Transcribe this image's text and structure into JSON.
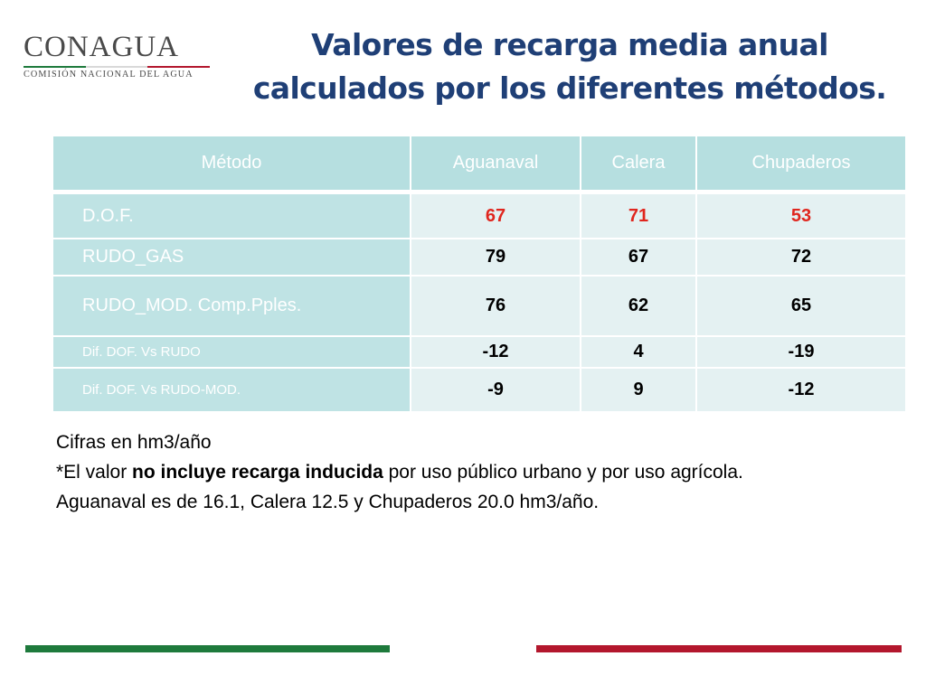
{
  "logo": {
    "wordmark": "CONAGUA",
    "subtitle": "COMISIÓN NACIONAL DEL AGUA"
  },
  "title": {
    "line1": "Valores de recarga media anual",
    "line2": "calculados por los diferentes métodos."
  },
  "table": {
    "headers": [
      "Método",
      "Aguanaval",
      "Calera",
      "Chupaderos"
    ],
    "rows": [
      {
        "label": "D.O.F.",
        "values": [
          "67",
          "71",
          "53"
        ]
      },
      {
        "label": "RUDO_GAS",
        "values": [
          "79",
          "67",
          "72"
        ]
      },
      {
        "label": "RUDO_MOD. Comp.Pples.",
        "values": [
          "76",
          "62",
          "65"
        ]
      },
      {
        "label": "Dif. DOF. Vs RUDO",
        "values": [
          "-12",
          "4",
          "-19"
        ]
      },
      {
        "label": "Dif. DOF. Vs RUDO-MOD.",
        "values": [
          "-9",
          "9",
          "-12"
        ]
      }
    ]
  },
  "notes": {
    "line1": "Cifras en hm3/año",
    "line2_prefix": "*El valor ",
    "line2_bold": "no incluye recarga inducida",
    "line2_suffix": " por uso público urbano y por uso agrícola.",
    "line3": "Aguanaval es de 16.1, Calera 12.5 y Chupaderos 20.0  hm3/año."
  },
  "colors": {
    "title": "#1f3f76",
    "header_bg": "#b6dfe0",
    "label_bg": "#bfe3e4",
    "cell_bg": "#e4f1f2",
    "highlight_red": "#e0261e",
    "stripe_green": "#1e7a3c",
    "stripe_red": "#b3172d"
  }
}
